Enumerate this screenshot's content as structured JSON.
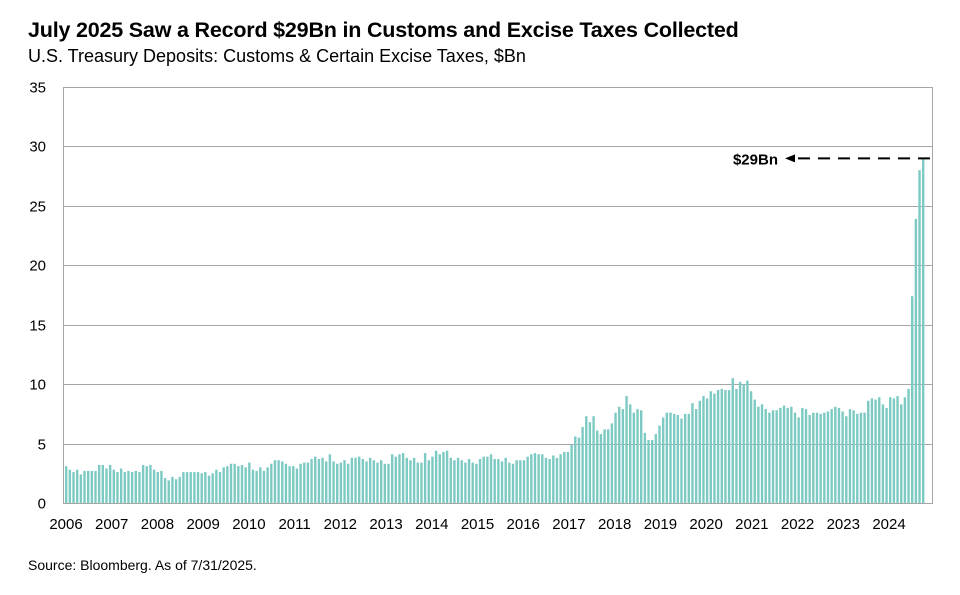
{
  "chart_data": {
    "type": "bar",
    "title": "July 2025 Saw a Record $29Bn in Customs and Excise Taxes Collected",
    "subtitle": "U.S. Treasury Deposits: Customs & Certain Excise Taxes, $Bn",
    "xlabel": "",
    "ylabel": "",
    "ylim": [
      0,
      35
    ],
    "yticks": [
      "0",
      "5",
      "10",
      "15",
      "20",
      "25",
      "30",
      "35"
    ],
    "xticks": [
      "2006",
      "2007",
      "2008",
      "2009",
      "2010",
      "2011",
      "2012",
      "2013",
      "2014",
      "2015",
      "2016",
      "2017",
      "2018",
      "2019",
      "2020",
      "2021",
      "2022",
      "2023",
      "2024"
    ],
    "grid": true,
    "frequency": "monthly",
    "start": "2006-01",
    "end": "2025-07",
    "bar_color": "#7ccac3",
    "values": [
      3.1,
      2.8,
      2.6,
      2.8,
      2.4,
      2.7,
      2.7,
      2.7,
      2.7,
      3.2,
      3.2,
      2.9,
      3.2,
      2.8,
      2.6,
      2.9,
      2.6,
      2.7,
      2.6,
      2.7,
      2.6,
      3.2,
      3.1,
      3.2,
      2.8,
      2.6,
      2.7,
      2.1,
      1.9,
      2.2,
      2.0,
      2.2,
      2.6,
      2.6,
      2.6,
      2.6,
      2.6,
      2.5,
      2.6,
      2.3,
      2.5,
      2.8,
      2.6,
      3.0,
      3.1,
      3.3,
      3.3,
      3.1,
      3.2,
      3.0,
      3.4,
      2.8,
      2.7,
      3.0,
      2.7,
      3.0,
      3.3,
      3.6,
      3.6,
      3.5,
      3.3,
      3.1,
      3.1,
      2.9,
      3.3,
      3.4,
      3.4,
      3.7,
      3.9,
      3.7,
      3.8,
      3.5,
      4.1,
      3.5,
      3.3,
      3.4,
      3.6,
      3.3,
      3.8,
      3.8,
      3.9,
      3.7,
      3.5,
      3.8,
      3.6,
      3.4,
      3.6,
      3.3,
      3.3,
      4.1,
      3.9,
      4.1,
      4.2,
      3.8,
      3.6,
      3.8,
      3.4,
      3.4,
      4.2,
      3.6,
      3.9,
      4.4,
      4.1,
      4.3,
      4.4,
      3.8,
      3.6,
      3.8,
      3.6,
      3.4,
      3.7,
      3.4,
      3.3,
      3.7,
      3.9,
      3.9,
      4.1,
      3.7,
      3.7,
      3.5,
      3.8,
      3.4,
      3.3,
      3.6,
      3.6,
      3.6,
      3.9,
      4.1,
      4.2,
      4.1,
      4.1,
      3.8,
      3.7,
      4.0,
      3.8,
      4.1,
      4.3,
      4.3,
      4.9,
      5.6,
      5.5,
      6.4,
      7.3,
      6.8,
      7.3,
      6.1,
      5.8,
      6.2,
      6.2,
      6.7,
      7.6,
      8.1,
      7.9,
      9.0,
      8.3,
      7.6,
      7.9,
      7.8,
      5.9,
      5.3,
      5.3,
      5.8,
      6.5,
      7.2,
      7.6,
      7.6,
      7.5,
      7.4,
      7.1,
      7.5,
      7.5,
      8.4,
      7.9,
      8.6,
      9.0,
      8.8,
      9.4,
      9.2,
      9.5,
      9.6,
      9.5,
      9.5,
      10.5,
      9.6,
      10.2,
      10.0,
      10.3,
      9.4,
      8.7,
      8.1,
      8.3,
      7.9,
      7.6,
      7.8,
      7.8,
      8.0,
      8.2,
      8.0,
      8.1,
      7.6,
      7.2,
      8.0,
      7.9,
      7.4,
      7.6,
      7.6,
      7.5,
      7.6,
      7.7,
      7.9,
      8.1,
      8.0,
      7.7,
      7.3,
      7.9,
      7.8,
      7.5,
      7.6,
      7.6,
      8.6,
      8.8,
      8.7,
      8.9,
      8.3,
      8.0,
      8.9,
      8.8,
      9.0,
      8.3,
      8.9,
      9.6,
      17.4,
      23.9,
      28.0,
      29.0
    ],
    "annotation": {
      "text": "$29Bn",
      "value": 29,
      "style": "dashed-arrow"
    },
    "source": "Source: Bloomberg. As of 7/31/2025."
  }
}
